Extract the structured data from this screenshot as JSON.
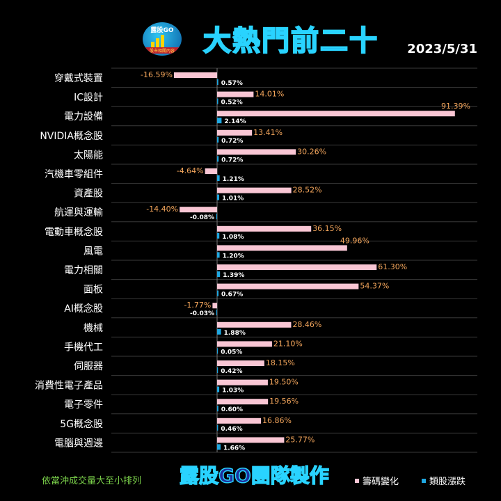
{
  "title": "大熱門前二十",
  "date": "2023/5/31",
  "logo": {
    "text": "露股GO",
    "tagline": "股市相關內容"
  },
  "footer": {
    "note": "依當沖成交量大至小排列",
    "brand": "露股GO團隊製作"
  },
  "colors": {
    "chip": "#f9c6d4",
    "stock": "#1fa7e0",
    "chip_label": "#f4a65c",
    "background": "#000000"
  },
  "chart_data": {
    "type": "bar",
    "orientation": "horizontal",
    "categories": [
      "穿戴式裝置",
      "IC設計",
      "電力設備",
      "NVIDIA概念股",
      "太陽能",
      "汽機車零組件",
      "資產股",
      "航運與運輸",
      "電動車概念股",
      "風電",
      "電力相關",
      "面板",
      "AI概念股",
      "機械",
      "手機代工",
      "伺服器",
      "消費性電子產品",
      "電子零件",
      "5G概念股",
      "電腦與週邊"
    ],
    "series": [
      {
        "name": "籌碼變化",
        "values": [
          -16.59,
          14.01,
          91.39,
          13.41,
          30.26,
          -4.64,
          28.52,
          -14.4,
          36.15,
          49.96,
          61.3,
          54.37,
          -1.77,
          28.46,
          21.1,
          18.15,
          19.5,
          19.56,
          16.86,
          25.77
        ],
        "labels": [
          "-16.59%",
          "14.01%",
          "91.39%",
          "13.41%",
          "30.26%",
          "-4.64%",
          "28.52%",
          "-14.40%",
          "36.15%",
          "49.96%",
          "61.30%",
          "54.37%",
          "-1.77%",
          "28.46%",
          "21.10%",
          "18.15%",
          "19.50%",
          "19.56%",
          "16.86%",
          "25.77%"
        ]
      },
      {
        "name": "類股漲跌",
        "values": [
          0.57,
          0.52,
          2.14,
          0.72,
          0.72,
          1.21,
          1.01,
          -0.08,
          1.08,
          1.2,
          1.39,
          0.67,
          -0.03,
          1.88,
          0.05,
          0.42,
          1.03,
          0.6,
          0.46,
          1.66
        ],
        "labels": [
          "0.57%",
          "0.52%",
          "2.14%",
          "0.72%",
          "0.72%",
          "1.21%",
          "1.01%",
          "-0.08%",
          "1.08%",
          "1.20%",
          "1.39%",
          "0.67%",
          "-0.03%",
          "1.88%",
          "0.05%",
          "0.42%",
          "1.03%",
          "0.60%",
          "0.46%",
          "1.66%"
        ]
      }
    ],
    "grid": true,
    "legend": "bottom-right"
  }
}
